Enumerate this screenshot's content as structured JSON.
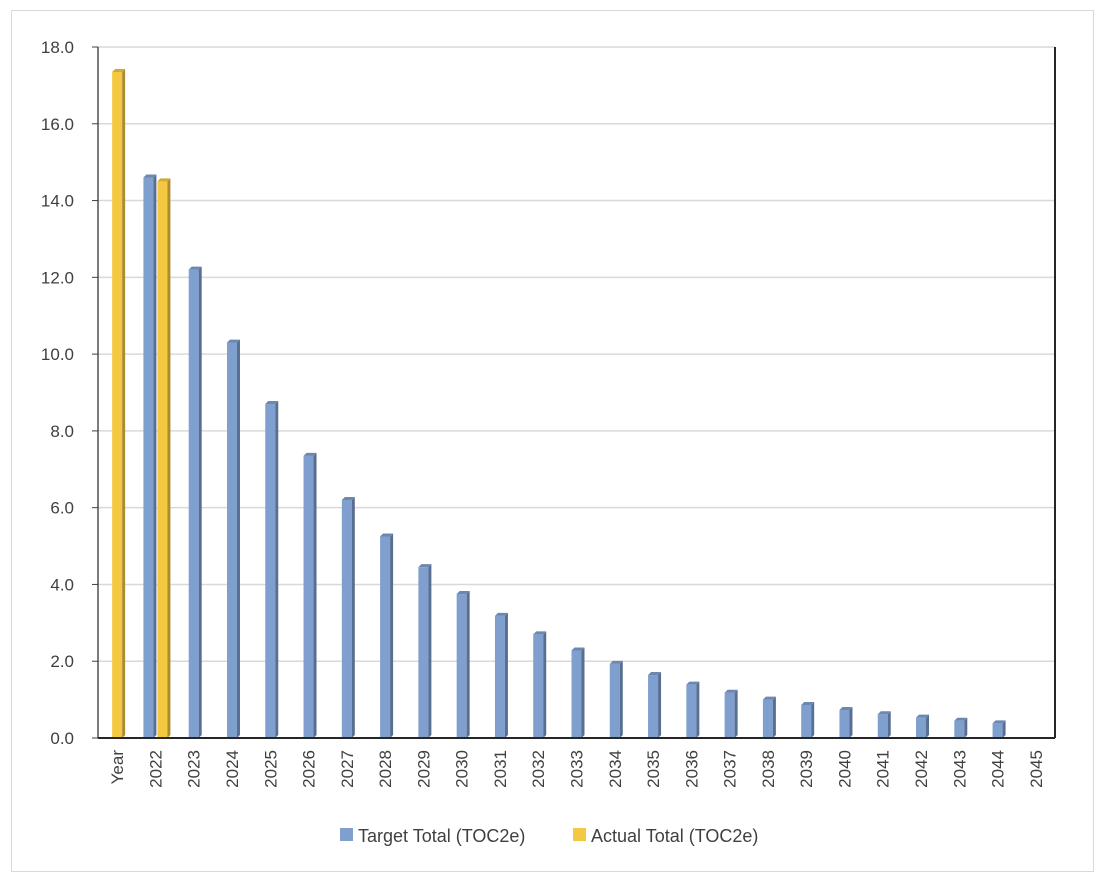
{
  "chart_data": {
    "type": "bar",
    "categories": [
      "Year",
      "2022",
      "2023",
      "2024",
      "2025",
      "2026",
      "2027",
      "2028",
      "2029",
      "2030",
      "2031",
      "2032",
      "2033",
      "2034",
      "2035",
      "2036",
      "2037",
      "2038",
      "2039",
      "2040",
      "2041",
      "2042",
      "2043",
      "2044",
      "2045"
    ],
    "series": [
      {
        "name": "Target Total (TOC2e)",
        "color": "#7f9fcf",
        "values": [
          null,
          14.6,
          12.2,
          10.3,
          8.7,
          7.35,
          6.2,
          5.25,
          4.45,
          3.75,
          3.18,
          2.7,
          2.28,
          1.93,
          1.64,
          1.39,
          1.18,
          1.0,
          0.86,
          0.73,
          0.62,
          0.53,
          0.45,
          0.38,
          null
        ]
      },
      {
        "name": "Actual Total (TOC2e)",
        "color": "#f5c842",
        "values": [
          17.35,
          14.5,
          null,
          null,
          null,
          null,
          null,
          null,
          null,
          null,
          null,
          null,
          null,
          null,
          null,
          null,
          null,
          null,
          null,
          null,
          null,
          null,
          null,
          null,
          null
        ]
      }
    ],
    "y_ticks": [
      "0.0",
      "2.0",
      "4.0",
      "6.0",
      "8.0",
      "10.0",
      "12.0",
      "14.0",
      "16.0",
      "18.0"
    ],
    "ylim": [
      0,
      18
    ],
    "title": "",
    "xlabel": "",
    "ylabel": "",
    "grid": true,
    "legend_position": "bottom"
  }
}
